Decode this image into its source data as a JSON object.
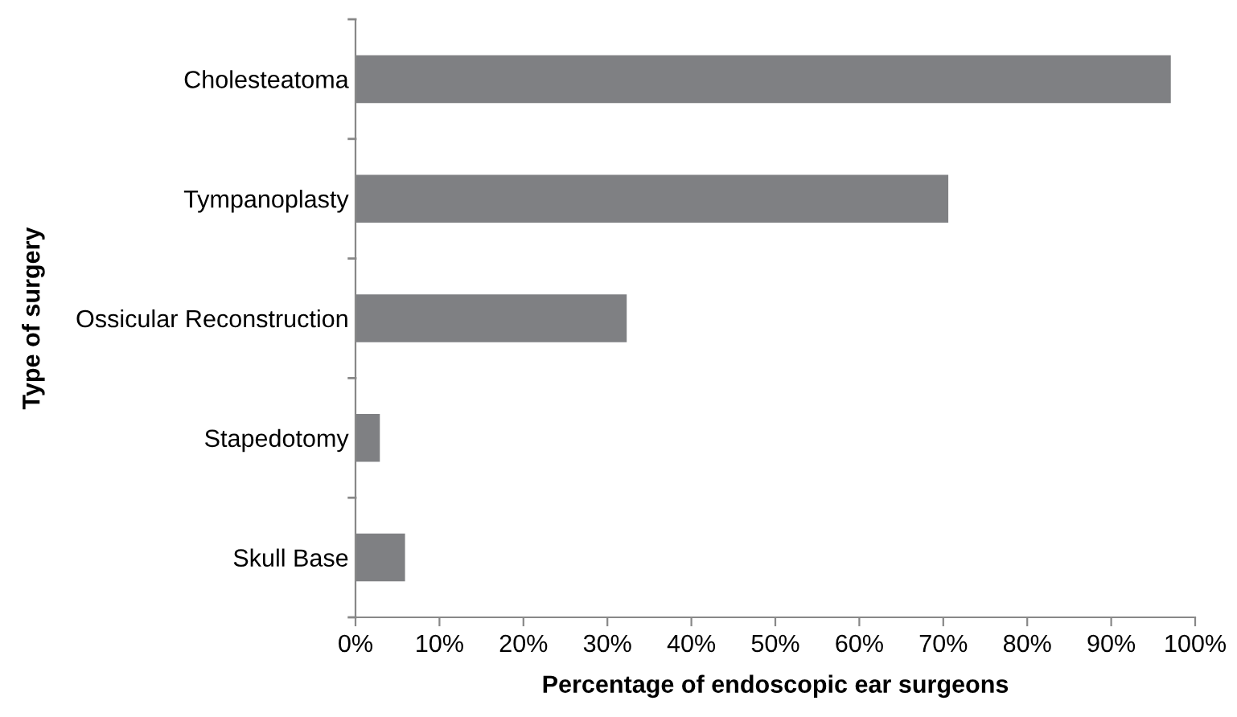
{
  "chart_data": {
    "type": "bar",
    "orientation": "horizontal",
    "categories": [
      "Cholesteatoma",
      "Tympanoplasty",
      "Ossicular Reconstruction",
      "Stapedotomy",
      "Skull Base"
    ],
    "values": [
      97.1,
      70.6,
      32.3,
      2.9,
      5.9
    ],
    "color": "#7f8083",
    "xlabel": "Percentage of endoscopic ear surgeons",
    "ylabel": "Type of surgery",
    "xlim": [
      0,
      100
    ],
    "xticks": [
      {
        "value": 0,
        "label": "0%"
      },
      {
        "value": 10,
        "label": "10%"
      },
      {
        "value": 20,
        "label": "20%"
      },
      {
        "value": 30,
        "label": "30%"
      },
      {
        "value": 40,
        "label": "40%"
      },
      {
        "value": 50,
        "label": "50%"
      },
      {
        "value": 60,
        "label": "60%"
      },
      {
        "value": 70,
        "label": "70%"
      },
      {
        "value": 80,
        "label": "80%"
      },
      {
        "value": 90,
        "label": "90%"
      },
      {
        "value": 100,
        "label": "100%"
      }
    ],
    "grid": false,
    "legend": false
  }
}
